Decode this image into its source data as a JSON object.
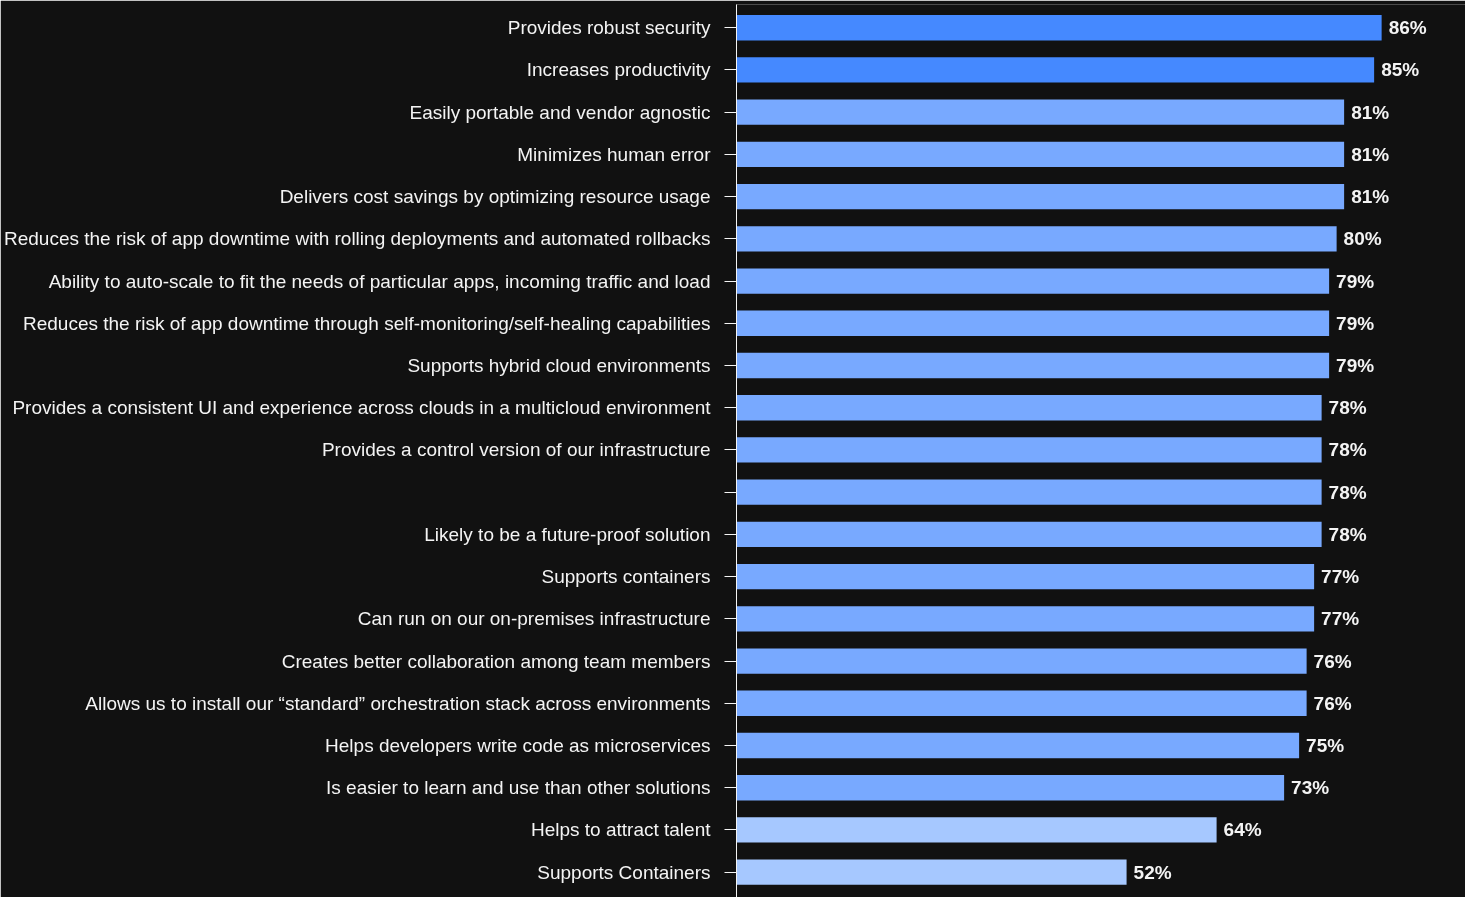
{
  "chart_data": {
    "type": "bar",
    "orientation": "horizontal",
    "data_labels": true,
    "categories": [
      "Provides robust security",
      "Increases productivity",
      "Easily portable and vendor agnostic",
      "Minimizes human error",
      "Delivers cost savings by optimizing resource usage",
      "Reduces the risk of app downtime with rolling deployments and automated rollbacks",
      "Ability to auto-scale to fit the needs of particular apps, incoming traffic and load",
      "Reduces the risk of app downtime through self-monitoring/self-healing capabilities",
      "Supports hybrid cloud environments",
      "Provides a consistent UI and experience across clouds in a multicloud environment",
      "Provides a control version of our infrastructure",
      null,
      "Likely to be a future-proof solution",
      "Supports containers",
      "Can run on our on-premises infrastructure",
      "Creates better collaboration among team members",
      "Allows us to install our “standard” orchestration stack across environments",
      "Helps developers write code as microservices",
      "Is easier to learn and use than other solutions",
      "Helps to attract talent",
      "Supports Containers"
    ],
    "values": [
      86,
      85,
      81,
      81,
      81,
      80,
      79,
      79,
      79,
      78,
      78,
      78,
      78,
      77,
      77,
      76,
      76,
      75,
      73,
      64,
      52
    ],
    "value_labels": [
      "86%",
      "85%",
      "81%",
      "81%",
      "81%",
      "80%",
      "79%",
      "79%",
      "79%",
      "78%",
      "78%",
      "78%",
      "78%",
      "77%",
      "77%",
      "76%",
      "76%",
      "75%",
      "73%",
      "64%",
      "52%"
    ],
    "colors": [
      "#4589ff",
      "#4589ff",
      "#78a9ff",
      "#78a9ff",
      "#78a9ff",
      "#78a9ff",
      "#78a9ff",
      "#78a9ff",
      "#78a9ff",
      "#78a9ff",
      "#78a9ff",
      "#78a9ff",
      "#78a9ff",
      "#78a9ff",
      "#78a9ff",
      "#78a9ff",
      "#78a9ff",
      "#78a9ff",
      "#78a9ff",
      "#a6c8ff",
      "#a6c8ff"
    ],
    "grid": false
  }
}
